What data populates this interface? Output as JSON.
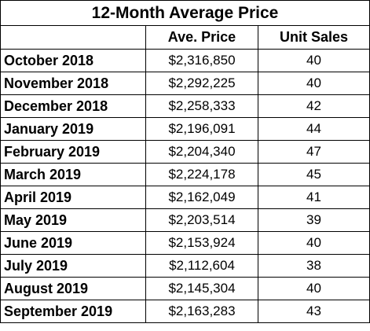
{
  "chart_data": {
    "type": "table",
    "title": "12-Month Average Price",
    "columns": [
      "",
      "Ave. Price",
      "Unit Sales"
    ],
    "rows": [
      {
        "month": "October 2018",
        "price": "$2,316,850",
        "units": "40"
      },
      {
        "month": "November 2018",
        "price": "$2,292,225",
        "units": "40"
      },
      {
        "month": "December 2018",
        "price": "$2,258,333",
        "units": "42"
      },
      {
        "month": "January 2019",
        "price": "$2,196,091",
        "units": "44"
      },
      {
        "month": "February 2019",
        "price": "$2,204,340",
        "units": "47"
      },
      {
        "month": "March 2019",
        "price": "$2,224,178",
        "units": "45"
      },
      {
        "month": "April 2019",
        "price": "$2,162,049",
        "units": "41"
      },
      {
        "month": "May 2019",
        "price": "$2,203,514",
        "units": "39"
      },
      {
        "month": "June 2019",
        "price": "$2,153,924",
        "units": "40"
      },
      {
        "month": "July 2019",
        "price": "$2,112,604",
        "units": "38"
      },
      {
        "month": "August 2019",
        "price": "$2,145,304",
        "units": "40"
      },
      {
        "month": "September 2019",
        "price": "$2,163,283",
        "units": "43"
      }
    ]
  }
}
